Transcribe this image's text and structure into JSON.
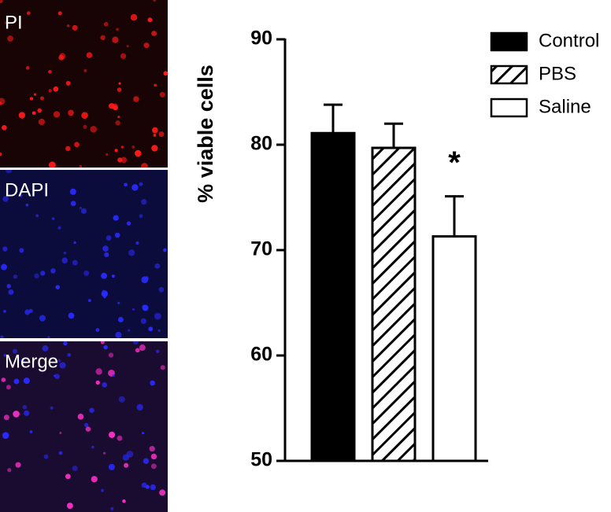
{
  "panels": [
    {
      "label": "PI"
    },
    {
      "label": "DAPI"
    },
    {
      "label": "Merge"
    }
  ],
  "chart_data": {
    "type": "bar",
    "ylabel": "% viable cells",
    "series": [
      {
        "name": "Control",
        "color": "#000000",
        "values": [
          81.1
        ],
        "errors": [
          2.7
        ]
      },
      {
        "name": "PBS",
        "color": "#ffffff",
        "pattern": "hatch",
        "values": [
          79.7
        ],
        "errors": [
          2.3
        ]
      },
      {
        "name": "Saline",
        "color": "#ffffff",
        "values": [
          71.3
        ],
        "errors": [
          3.8
        ]
      }
    ],
    "annotations": [
      {
        "text": "*"
      }
    ],
    "ylim": [
      50,
      90
    ],
    "yticks": [
      50,
      60,
      70,
      80,
      90
    ],
    "legend": "upper right"
  }
}
